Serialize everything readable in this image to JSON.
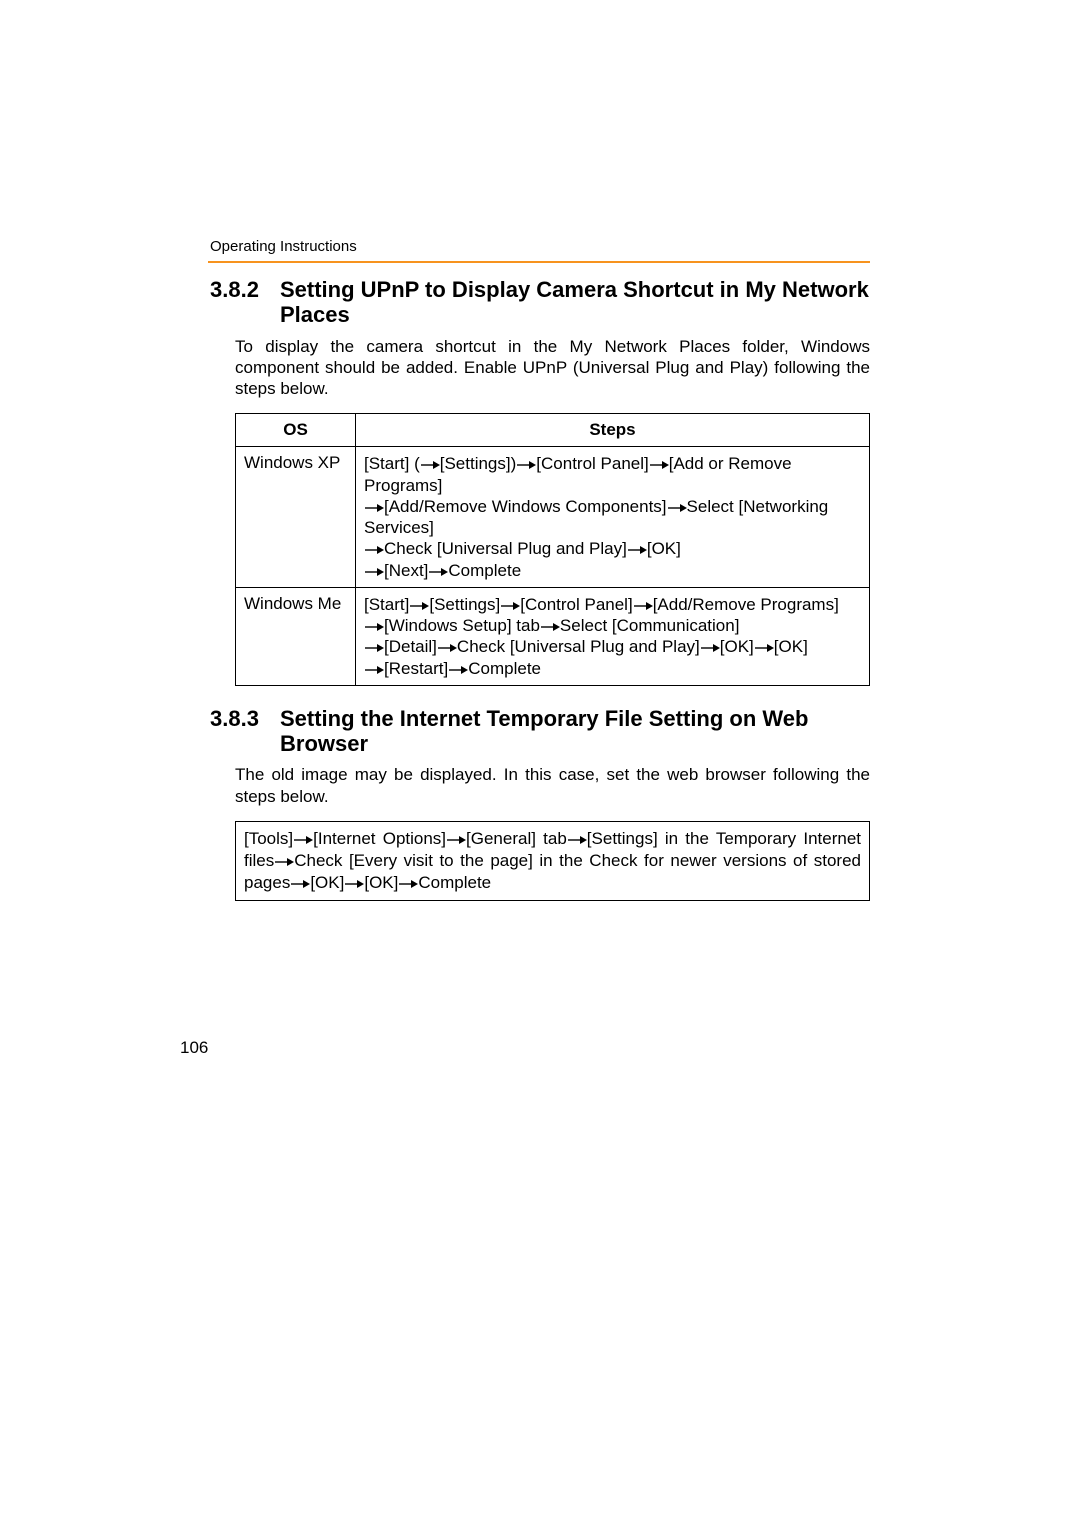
{
  "colors": {
    "rule": "#f7931e",
    "text": "#000000",
    "bg": "#ffffff",
    "border": "#000000"
  },
  "header": {
    "label": "Operating Instructions"
  },
  "page_number": "106",
  "arrow_glyph": "→",
  "section382": {
    "number": "3.8.2",
    "title": "Setting UPnP to Display Camera Shortcut in My Network Places",
    "intro": "To display the camera shortcut in the My Network Places folder, Windows component should be added. Enable UPnP (Universal Plug and Play) following the steps below.",
    "table": {
      "columns": [
        "OS",
        "Steps"
      ],
      "rows": [
        {
          "os": "Windows XP",
          "steps": [
            [
              "[Start] (",
              "→",
              "[Settings])",
              "→",
              "[Control Panel]",
              "→",
              "[Add or Remove Programs]"
            ],
            [
              "→",
              "[Add/Remove Windows Components]",
              "→",
              "Select [Networking Services]"
            ],
            [
              "→",
              "Check [Universal Plug and Play]",
              "→",
              "[OK]"
            ],
            [
              "→",
              "[Next]",
              "→",
              "Complete"
            ]
          ]
        },
        {
          "os": "Windows Me",
          "steps": [
            [
              "[Start]",
              "→",
              "[Settings]",
              "→",
              "[Control Panel]",
              "→",
              "[Add/Remove Programs]"
            ],
            [
              "→",
              "[Windows Setup] tab",
              "→",
              "Select [Communication]"
            ],
            [
              "→",
              "[Detail]",
              "→",
              "Check [Universal Plug and Play]",
              "→",
              "[OK]",
              "→",
              "[OK]"
            ],
            [
              "→",
              "[Restart]",
              "→",
              "Complete"
            ]
          ]
        }
      ]
    }
  },
  "section383": {
    "number": "3.8.3",
    "title": "Setting the Internet Temporary File Setting on Web Browser",
    "intro": "The old image may be displayed. In this case, set the web browser following the steps below.",
    "box_steps": [
      "[Tools]",
      "→",
      "[Internet Options]",
      "→",
      "[General] tab",
      "→",
      "[Settings] in the Temporary Internet files",
      "→",
      "Check [Every visit to the page] in the Check for newer versions of stored pages",
      "→",
      "[OK]",
      "→",
      "[OK]",
      "→",
      "Complete"
    ]
  }
}
